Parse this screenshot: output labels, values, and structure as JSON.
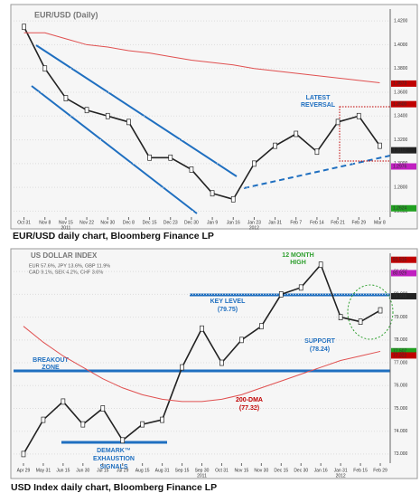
{
  "chart_data": [
    {
      "type": "line",
      "title": "EUR/USD (Daily)",
      "caption": "EUR/USD daily chart, Bloomberg Finance LP",
      "categories": [
        "Oct 31",
        "Nov 8",
        "Nov 15",
        "Nov 22",
        "Nov 30",
        "Dec 8",
        "Dec 15",
        "Dec 23",
        "Dec 30",
        "Jan 9",
        "Jan 16",
        "Jan 23",
        "Jan 31",
        "Feb 7",
        "Feb 14",
        "Feb 21",
        "Feb 29",
        "Mar 8"
      ],
      "years": [
        "2011",
        "2012"
      ],
      "series": [
        {
          "name": "EUR/USD",
          "color": "#222222",
          "values": [
            1.415,
            1.38,
            1.355,
            1.345,
            1.34,
            1.335,
            1.305,
            1.305,
            1.295,
            1.275,
            1.27,
            1.3,
            1.315,
            1.325,
            1.31,
            1.335,
            1.34,
            1.315
          ]
        },
        {
          "name": "200-DMA",
          "color": "#e05050",
          "values": [
            1.41,
            1.41,
            1.405,
            1.4,
            1.398,
            1.395,
            1.393,
            1.39,
            1.387,
            1.385,
            1.383,
            1.38,
            1.378,
            1.376,
            1.374,
            1.372,
            1.37,
            1.368
          ]
        }
      ],
      "ylim": [
        1.255,
        1.43
      ],
      "yticks": [
        {
          "value": 1.26,
          "label": "1.2600"
        },
        {
          "value": 1.28,
          "label": "1.2800"
        },
        {
          "value": 1.3,
          "label": "1.3000"
        },
        {
          "value": 1.32,
          "label": "1.3200"
        },
        {
          "value": 1.34,
          "label": "1.3400"
        },
        {
          "value": 1.36,
          "label": "1.3600"
        },
        {
          "value": 1.38,
          "label": "1.3800"
        },
        {
          "value": 1.4,
          "label": "1.4000"
        },
        {
          "value": 1.42,
          "label": "1.4200"
        }
      ],
      "markers": [
        {
          "value": 1.3673,
          "label": "1.3673",
          "color": "#c00000"
        },
        {
          "value": 1.35,
          "label": "1.3500",
          "color": "#c00000"
        },
        {
          "value": 1.3112,
          "label": "1.3112",
          "color": "#222222"
        },
        {
          "value": 1.2976,
          "label": "1.2976",
          "color": "#c020c0"
        },
        {
          "value": 1.2624,
          "label": "1.2624",
          "color": "#20a020"
        }
      ],
      "annotations": [
        "LATEST",
        "REVERSAL"
      ]
    },
    {
      "type": "line",
      "title": "US DOLLAR INDEX",
      "caption": "USD Index daily chart, Bloomberg Finance LP",
      "legend_text": [
        "EUR 57.6%, JPY 13.6%, GBP 11.9%",
        "CAD 9.1%, SEK 4.2%, CHF 3.6%"
      ],
      "categories": [
        "Apr 29",
        "May 31",
        "Jun 15",
        "Jun 30",
        "Jul 15",
        "Jul 29",
        "Aug 15",
        "Aug 31",
        "Sep 15",
        "Sep 30",
        "Oct 31",
        "Nov 15",
        "Nov 30",
        "Dec 15",
        "Dec 30",
        "Jan 16",
        "Jan 31",
        "Feb 15",
        "Feb 29"
      ],
      "years": [
        "2011",
        "2012"
      ],
      "series": [
        {
          "name": "USD Index",
          "color": "#222222",
          "values": [
            73.0,
            74.5,
            75.3,
            74.3,
            75.0,
            73.6,
            74.3,
            74.5,
            76.8,
            78.5,
            77.0,
            78.0,
            78.6,
            80.0,
            80.3,
            81.3,
            79.0,
            78.8,
            79.3
          ]
        },
        {
          "name": "200-DMA",
          "color": "#e05050",
          "values": [
            78.6,
            77.9,
            77.3,
            76.8,
            76.3,
            75.9,
            75.6,
            75.4,
            75.3,
            75.3,
            75.4,
            75.6,
            75.9,
            76.2,
            76.5,
            76.8,
            77.1,
            77.3,
            77.5
          ]
        }
      ],
      "ylim": [
        72.6,
        81.8
      ],
      "yticks": [
        {
          "value": 73,
          "label": "73.000"
        },
        {
          "value": 74,
          "label": "74.000"
        },
        {
          "value": 75,
          "label": "75.000"
        },
        {
          "value": 76,
          "label": "76.000"
        },
        {
          "value": 77,
          "label": "77.000"
        },
        {
          "value": 78,
          "label": "78.000"
        },
        {
          "value": 79,
          "label": "79.000"
        },
        {
          "value": 80,
          "label": "80.000"
        },
        {
          "value": 81,
          "label": "81.000"
        }
      ],
      "markers": [
        {
          "value": 81.515,
          "label": "81.515",
          "color": "#c00000"
        },
        {
          "value": 80.929,
          "label": "80.929",
          "color": "#c020c0"
        },
        {
          "value": 79.918,
          "label": "79.918",
          "color": "#222222"
        },
        {
          "value": 77.507,
          "label": "77.507",
          "color": "#20a020"
        },
        {
          "value": 77.322,
          "label": "77.322",
          "color": "#c00000"
        }
      ],
      "annotations": [
        "12 MONTH",
        "HIGH",
        "KEY LEVEL",
        "(79.75)",
        "SUPPORT",
        "(78.24)",
        "BREAKOUT",
        "ZONE",
        "200-DMA",
        "(77.32)",
        "DEMARK™",
        "EXHAUSTION",
        "SIGNALS"
      ]
    }
  ]
}
